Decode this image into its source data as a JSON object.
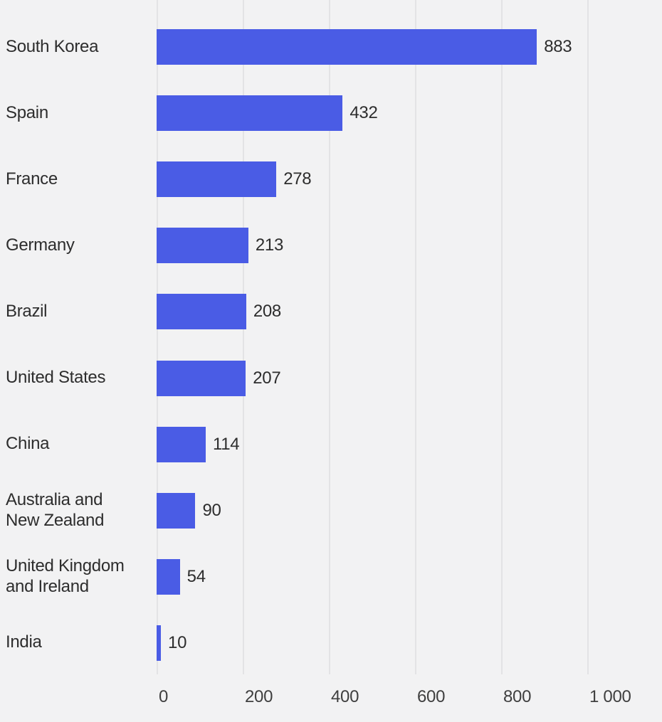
{
  "chart_data": {
    "type": "bar",
    "orientation": "horizontal",
    "title": "",
    "xlabel": "",
    "ylabel": "",
    "categories": [
      "South Korea",
      "Spain",
      "France",
      "Germany",
      "Brazil",
      "United States",
      "China",
      "Australia and New Zealand",
      "United Kingdom and Ireland",
      "India"
    ],
    "category_lines": [
      [
        "South Korea"
      ],
      [
        "Spain"
      ],
      [
        "France"
      ],
      [
        "Germany"
      ],
      [
        "Brazil"
      ],
      [
        "United States"
      ],
      [
        "China"
      ],
      [
        "Australia and",
        "New Zealand"
      ],
      [
        "United Kingdom",
        "and Ireland"
      ],
      [
        "India"
      ]
    ],
    "values": [
      883,
      432,
      278,
      213,
      208,
      207,
      114,
      90,
      54,
      10
    ],
    "value_labels": [
      "883",
      "432",
      "278",
      "213",
      "208",
      "207",
      "114",
      "90",
      "54",
      "10"
    ],
    "x_ticks": [
      {
        "value": 0,
        "label": "0"
      },
      {
        "value": 200,
        "label": "200"
      },
      {
        "value": 400,
        "label": "400"
      },
      {
        "value": 600,
        "label": "600"
      },
      {
        "value": 800,
        "label": "800"
      },
      {
        "value": 1000,
        "label": "1 000"
      }
    ],
    "xlim": [
      0,
      1173
    ],
    "grid": "vertical-only",
    "legend": "none",
    "colors": {
      "bar": "#4a5ce5",
      "background": "#f2f2f3",
      "gridline": "#e3e3e5",
      "category_text": "#2d2d2d",
      "tick_text": "#3f3f3f"
    }
  }
}
